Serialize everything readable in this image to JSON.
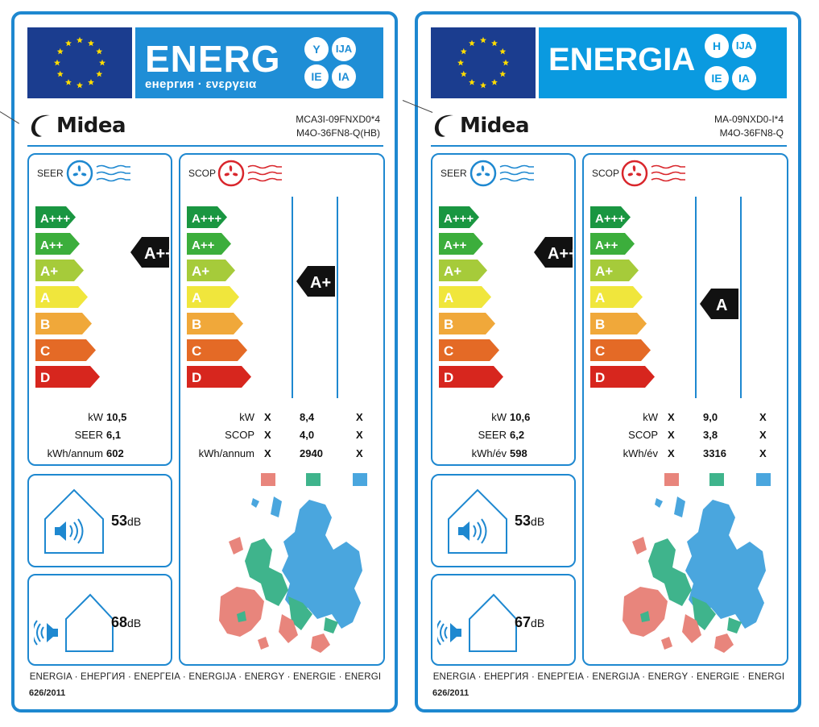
{
  "labels": [
    {
      "banner_word": "ENERG",
      "banner_sub": "енергия · ενεργεια",
      "lang_circles": [
        "Y",
        "IJA",
        "IE",
        "IA"
      ],
      "brand": "Midea",
      "model_indoor": "MCA3I-09FNXD0*4",
      "model_outdoor": "M4O-36FN8-Q(HB)",
      "seer_title": "SEER",
      "scop_title": "SCOP",
      "classes": [
        "A+++",
        "A++",
        "A+",
        "A",
        "B",
        "C",
        "D"
      ],
      "seer_class": "A++",
      "scop_class": "A+",
      "seer_values": {
        "kw_label": "kW",
        "kw": "10,5",
        "seer_label": "SEER",
        "seer": "6,1",
        "annual_label": "kWh/annum",
        "annual": "602"
      },
      "scop_values": {
        "kw_label": "kW",
        "scop_label": "SCOP",
        "annual_label": "kWh/annum",
        "cols": [
          {
            "kw": "X",
            "scop": "X",
            "annual": "X"
          },
          {
            "kw": "8,4",
            "scop": "4,0",
            "annual": "2940"
          },
          {
            "kw": "X",
            "scop": "X",
            "annual": "X"
          }
        ]
      },
      "indoor_db": "53",
      "outdoor_db": "68",
      "db_unit": "dB",
      "footer": "ENERGIA · ЕНЕРГИЯ · ΕΝΕΡΓΕΙΑ · ENERGIJA · ENERGY · ENERGIE · ENERGI",
      "regulation": "626/2011"
    },
    {
      "banner_word": "ENERGIA",
      "banner_sub": "",
      "lang_circles": [
        "H",
        "IJA",
        "IE",
        "IA"
      ],
      "brand": "Midea",
      "model_indoor": "MA-09NXD0-I*4",
      "model_outdoor": "M4O-36FN8-Q",
      "seer_title": "SEER",
      "scop_title": "SCOP",
      "classes": [
        "A+++",
        "A++",
        "A+",
        "A",
        "B",
        "C",
        "D"
      ],
      "seer_class": "A++",
      "scop_class": "A",
      "seer_values": {
        "kw_label": "kW",
        "kw": "10,6",
        "seer_label": "SEER",
        "seer": "6,2",
        "annual_label": "kWh/év",
        "annual": "598"
      },
      "scop_values": {
        "kw_label": "kW",
        "scop_label": "SCOP",
        "annual_label": "kWh/év",
        "cols": [
          {
            "kw": "X",
            "scop": "X",
            "annual": "X"
          },
          {
            "kw": "9,0",
            "scop": "3,8",
            "annual": "3316"
          },
          {
            "kw": "X",
            "scop": "X",
            "annual": "X"
          }
        ]
      },
      "indoor_db": "53",
      "outdoor_db": "67",
      "db_unit": "dB",
      "footer": "ENERGIA · ЕНЕРГИЯ · ΕΝΕΡΓΕΙΑ · ENERGIJA · ENERGY · ENERGIE · ENERGI",
      "regulation": "626/2011"
    }
  ],
  "colors": {
    "frame": "#1e88d0",
    "banner_left": "#1f8ed6",
    "banner_right": "#0a9ae0",
    "flag": "#1b3d8f",
    "star": "#ffdd00",
    "class_colors": [
      "#1a9641",
      "#3cae3c",
      "#a6cb3a",
      "#f0e63c",
      "#f0a83a",
      "#e46a26",
      "#d7261e"
    ],
    "zone_cold": "#e8857c",
    "zone_average": "#3fb48c",
    "zone_warm": "#4aa6de",
    "badge": "#111111"
  },
  "icons": [
    "eu-flag-icon",
    "midea-logo-icon",
    "cooling-fan-icon",
    "heating-fan-icon",
    "indoor-sound-icon",
    "outdoor-sound-icon",
    "europe-climate-map"
  ]
}
